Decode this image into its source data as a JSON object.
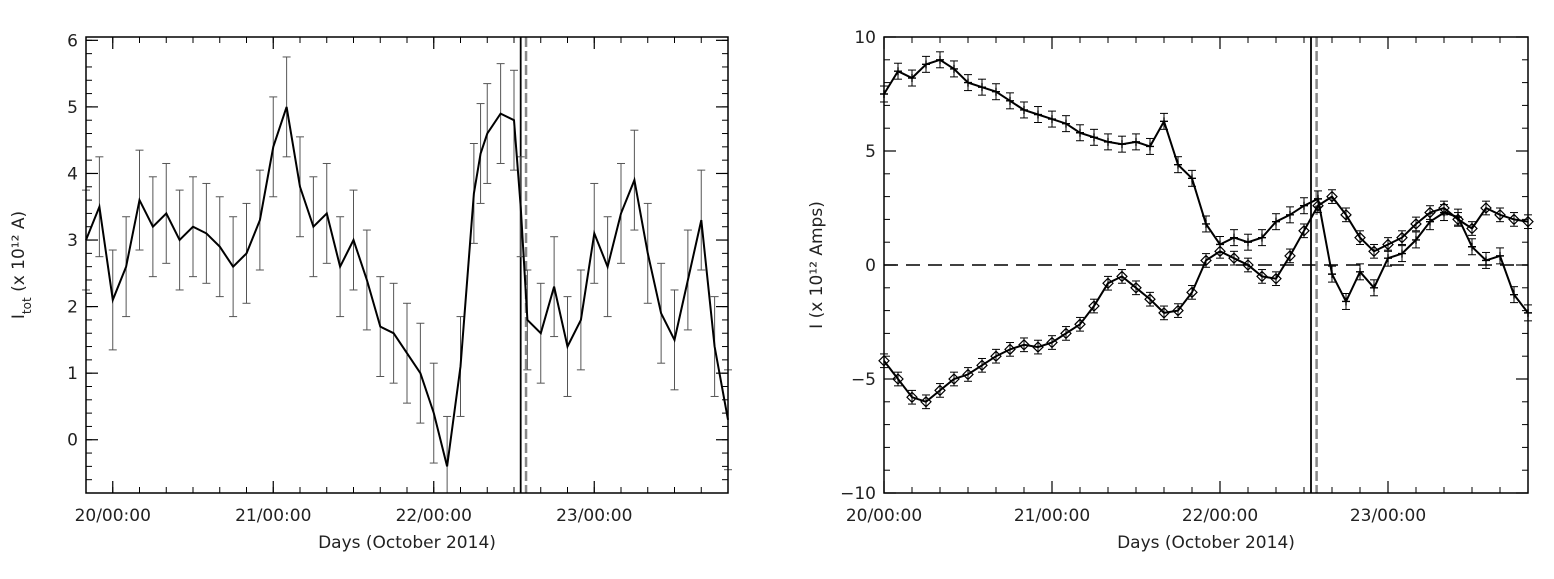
{
  "chart_data": [
    {
      "type": "line",
      "panel": "left",
      "title": "",
      "xlabel": "Days (October 2014)",
      "ylabel_main": "I",
      "ylabel_sub": "tot",
      "ylabel_rest": " (x 10¹² A)",
      "x_unit": "hours since 20/00:00",
      "xlim": [
        -4,
        92
      ],
      "ylim": [
        -0.8,
        6.05
      ],
      "x_tick_labels": [
        {
          "hours": 0,
          "label": "20/00:00"
        },
        {
          "hours": 24,
          "label": "21/00:00"
        },
        {
          "hours": 48,
          "label": "22/00:00"
        },
        {
          "hours": 72,
          "label": "23/00:00"
        }
      ],
      "y_tick_labels": [
        {
          "value": 0,
          "label": "0"
        },
        {
          "value": 1,
          "label": "1"
        },
        {
          "value": 2,
          "label": "2"
        },
        {
          "value": 3,
          "label": "3"
        },
        {
          "value": 4,
          "label": "4"
        },
        {
          "value": 5,
          "label": "5"
        },
        {
          "value": 6,
          "label": "6"
        }
      ],
      "vlines": [
        {
          "hours": 61.0,
          "style": "solid",
          "color": "#000000"
        },
        {
          "hours": 61.8,
          "style": "dashed",
          "color": "#888888"
        }
      ],
      "series": [
        {
          "color": "#000000",
          "errorbar_color": "#555555",
          "error": 0.75,
          "x": [
            -4,
            -2,
            0,
            2,
            4,
            6,
            8,
            10,
            12,
            14,
            16,
            18,
            20,
            22,
            24,
            26,
            28,
            30,
            32,
            34,
            36,
            38,
            40,
            42,
            44,
            46,
            48,
            50,
            52,
            54,
            55,
            56,
            58,
            60,
            61,
            62,
            64,
            66,
            68,
            70,
            72,
            74,
            76,
            78,
            80,
            82,
            84,
            86,
            88,
            90,
            92
          ],
          "values": [
            3.0,
            3.5,
            2.1,
            2.6,
            3.6,
            3.2,
            3.4,
            3.0,
            3.2,
            3.1,
            2.9,
            2.6,
            2.8,
            3.3,
            4.4,
            5.0,
            3.8,
            3.2,
            3.4,
            2.6,
            3.0,
            2.4,
            1.7,
            1.6,
            1.3,
            1.0,
            0.4,
            -0.4,
            1.1,
            3.7,
            4.3,
            4.6,
            4.9,
            4.8,
            3.5,
            1.8,
            1.6,
            2.3,
            1.4,
            1.8,
            3.1,
            2.6,
            3.4,
            3.9,
            2.8,
            1.9,
            1.5,
            2.4,
            3.3,
            1.4,
            0.3
          ]
        }
      ]
    },
    {
      "type": "line",
      "panel": "right",
      "title": "",
      "xlabel": "Days (October 2014)",
      "ylabel": "I (x 10¹² Amps)",
      "x_unit": "hours since 20/00:00",
      "xlim": [
        0,
        92
      ],
      "ylim": [
        -10,
        10
      ],
      "x_tick_labels": [
        {
          "hours": 0,
          "label": "20/00:00"
        },
        {
          "hours": 24,
          "label": "21/00:00"
        },
        {
          "hours": 48,
          "label": "22/00:00"
        },
        {
          "hours": 72,
          "label": "23/00:00"
        }
      ],
      "y_tick_labels": [
        {
          "value": -10,
          "label": "−10"
        },
        {
          "value": -5,
          "label": "−5"
        },
        {
          "value": 0,
          "label": "0"
        },
        {
          "value": 5,
          "label": "5"
        },
        {
          "value": 10,
          "label": "10"
        }
      ],
      "hline": {
        "value": 0,
        "style": "dashed"
      },
      "vlines": [
        {
          "hours": 61.0,
          "style": "solid",
          "color": "#000000"
        },
        {
          "hours": 61.8,
          "style": "dashed",
          "color": "#888888"
        }
      ],
      "series": [
        {
          "marker": "plus",
          "color": "#000000",
          "error": 0.35,
          "x": [
            0,
            2,
            4,
            6,
            8,
            10,
            12,
            14,
            16,
            18,
            20,
            22,
            24,
            26,
            28,
            30,
            32,
            34,
            36,
            38,
            40,
            42,
            44,
            46,
            48,
            50,
            52,
            54,
            56,
            58,
            60,
            62,
            64,
            66,
            68,
            70,
            72,
            74,
            76,
            78,
            80,
            82,
            84,
            86,
            88,
            90,
            92
          ],
          "values": [
            7.5,
            8.5,
            8.2,
            8.8,
            9.0,
            8.6,
            8.0,
            7.8,
            7.6,
            7.2,
            6.8,
            6.6,
            6.4,
            6.2,
            5.8,
            5.6,
            5.4,
            5.3,
            5.4,
            5.2,
            6.3,
            4.4,
            3.8,
            1.8,
            0.9,
            1.2,
            1.0,
            1.2,
            1.9,
            2.2,
            2.6,
            2.9,
            -0.4,
            -1.6,
            -0.3,
            -1.0,
            0.3,
            0.5,
            1.1,
            1.9,
            2.3,
            2.1,
            0.8,
            0.2,
            0.4,
            -1.3,
            -2.1
          ]
        },
        {
          "marker": "diamond",
          "color": "#000000",
          "error": 0.3,
          "x": [
            0,
            2,
            4,
            6,
            8,
            10,
            12,
            14,
            16,
            18,
            20,
            22,
            24,
            26,
            28,
            30,
            32,
            34,
            36,
            38,
            40,
            42,
            44,
            46,
            48,
            50,
            52,
            54,
            56,
            58,
            60,
            62,
            64,
            66,
            68,
            70,
            72,
            74,
            76,
            78,
            80,
            82,
            84,
            86,
            88,
            90,
            92
          ],
          "values": [
            -4.2,
            -5.0,
            -5.8,
            -6.0,
            -5.5,
            -5.0,
            -4.8,
            -4.4,
            -4.0,
            -3.7,
            -3.5,
            -3.6,
            -3.4,
            -3.0,
            -2.6,
            -1.8,
            -0.8,
            -0.5,
            -1.0,
            -1.5,
            -2.1,
            -2.0,
            -1.2,
            0.2,
            0.6,
            0.3,
            0.0,
            -0.5,
            -0.6,
            0.4,
            1.5,
            2.6,
            3.0,
            2.2,
            1.2,
            0.6,
            0.9,
            1.2,
            1.8,
            2.3,
            2.5,
            2.0,
            1.6,
            2.5,
            2.2,
            2.0,
            1.9
          ]
        }
      ]
    }
  ]
}
